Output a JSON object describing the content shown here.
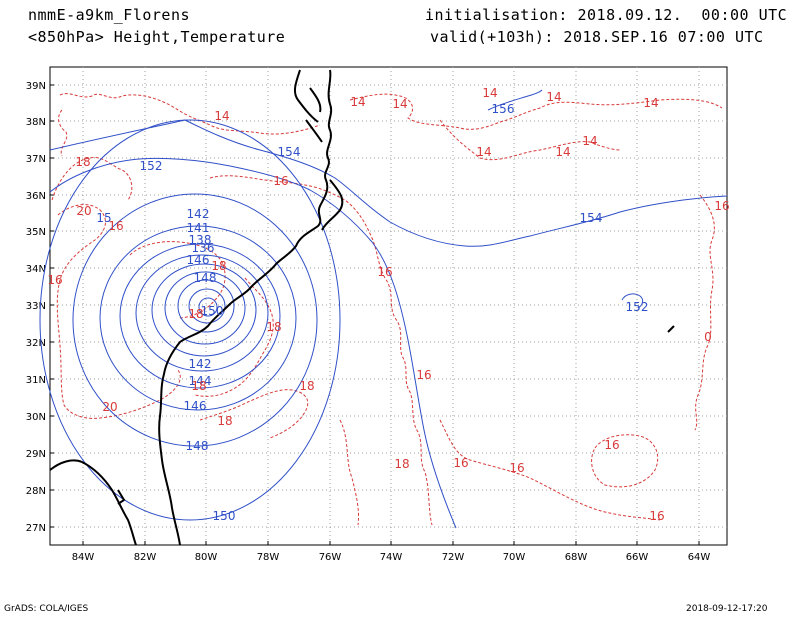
{
  "header": {
    "model": "nmmE-a9km_Florens",
    "level": "<850hPa> Height,Temperature",
    "init": "initialisation: 2018.09.12.  00:00 UTC",
    "valid": "valid(+103h): 2018.SEP.16 07:00 UTC"
  },
  "footer": {
    "credit": "GrADS: COLA/IGES",
    "timestamp": "2018-09-12-17:20"
  },
  "colors": {
    "height": "#3050c8",
    "temperature": "#d83a3a",
    "coast": "#000000",
    "grid": "#a0a0a0"
  },
  "axes": {
    "lat_labels": [
      "39N",
      "38N",
      "37N",
      "36N",
      "35N",
      "34N",
      "33N",
      "32N",
      "31N",
      "30N",
      "29N",
      "28N",
      "27N"
    ],
    "lon_labels": [
      "84W",
      "82W",
      "80W",
      "78W",
      "76W",
      "74W",
      "72W",
      "70W",
      "68W",
      "66W",
      "64W"
    ]
  },
  "height_labels": [
    "156",
    "154",
    "152",
    "154",
    "150",
    "148",
    "146",
    "144",
    "142",
    "141",
    "138",
    "136",
    "142",
    "146",
    "148",
    "150",
    "152",
    "15"
  ],
  "temp_labels": [
    "14",
    "14",
    "14",
    "14",
    "14",
    "14",
    "14",
    "14",
    "14",
    "18",
    "16",
    "20",
    "16",
    "16",
    "18",
    "18",
    "18",
    "18",
    "18",
    "18",
    "20",
    "16",
    "18",
    "16",
    "16",
    "16",
    "16",
    "16",
    "0",
    "16"
  ]
}
